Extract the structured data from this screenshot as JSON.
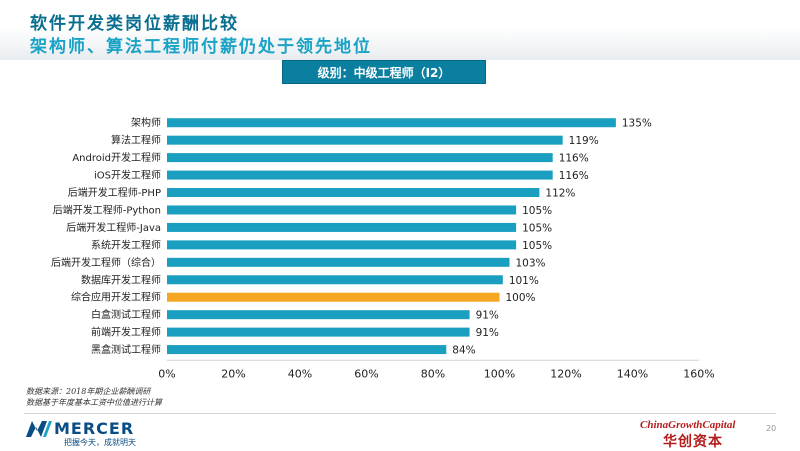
{
  "header": {
    "title": "软件开发类岗位薪酬比较",
    "subtitle": "架构师、算法工程师付薪仍处于领先地位"
  },
  "level_badge": "级别：中级工程师（I2）",
  "chart_data": {
    "type": "bar",
    "orientation": "horizontal",
    "categories": [
      "架构师",
      "算法工程师",
      "Android开发工程师",
      "iOS开发工程师",
      "后端开发工程师-PHP",
      "后端开发工程师-Python",
      "后端开发工程师-Java",
      "系统开发工程师",
      "后端开发工程师（综合）",
      "数据库开发工程师",
      "综合应用开发工程师",
      "白盒测试工程师",
      "前端开发工程师",
      "黑盒测试工程师"
    ],
    "values": [
      135,
      119,
      116,
      116,
      112,
      105,
      105,
      105,
      103,
      101,
      100,
      91,
      91,
      84
    ],
    "value_labels": [
      "135%",
      "119%",
      "116%",
      "116%",
      "112%",
      "105%",
      "105%",
      "105%",
      "103%",
      "101%",
      "100%",
      "91%",
      "91%",
      "84%"
    ],
    "highlight_index": 10,
    "xlim": [
      0,
      160
    ],
    "xticks": [
      "0%",
      "20%",
      "40%",
      "60%",
      "80%",
      "100%",
      "120%",
      "140%",
      "160%"
    ],
    "bar_color": "#1a9fc0",
    "highlight_color": "#f5a623",
    "grid": false
  },
  "source": {
    "line1": "数据来源：2018年期企业薪酬调研",
    "line2": "数据基于年度基本工资中位值进行计算"
  },
  "footer": {
    "mercer_brand": "MERCER",
    "mercer_tagline": "把握今天，成就明天",
    "cgc_brand": "ChinaGrowthCapital",
    "cgc_cn": "华创资本",
    "page_number": "20"
  }
}
